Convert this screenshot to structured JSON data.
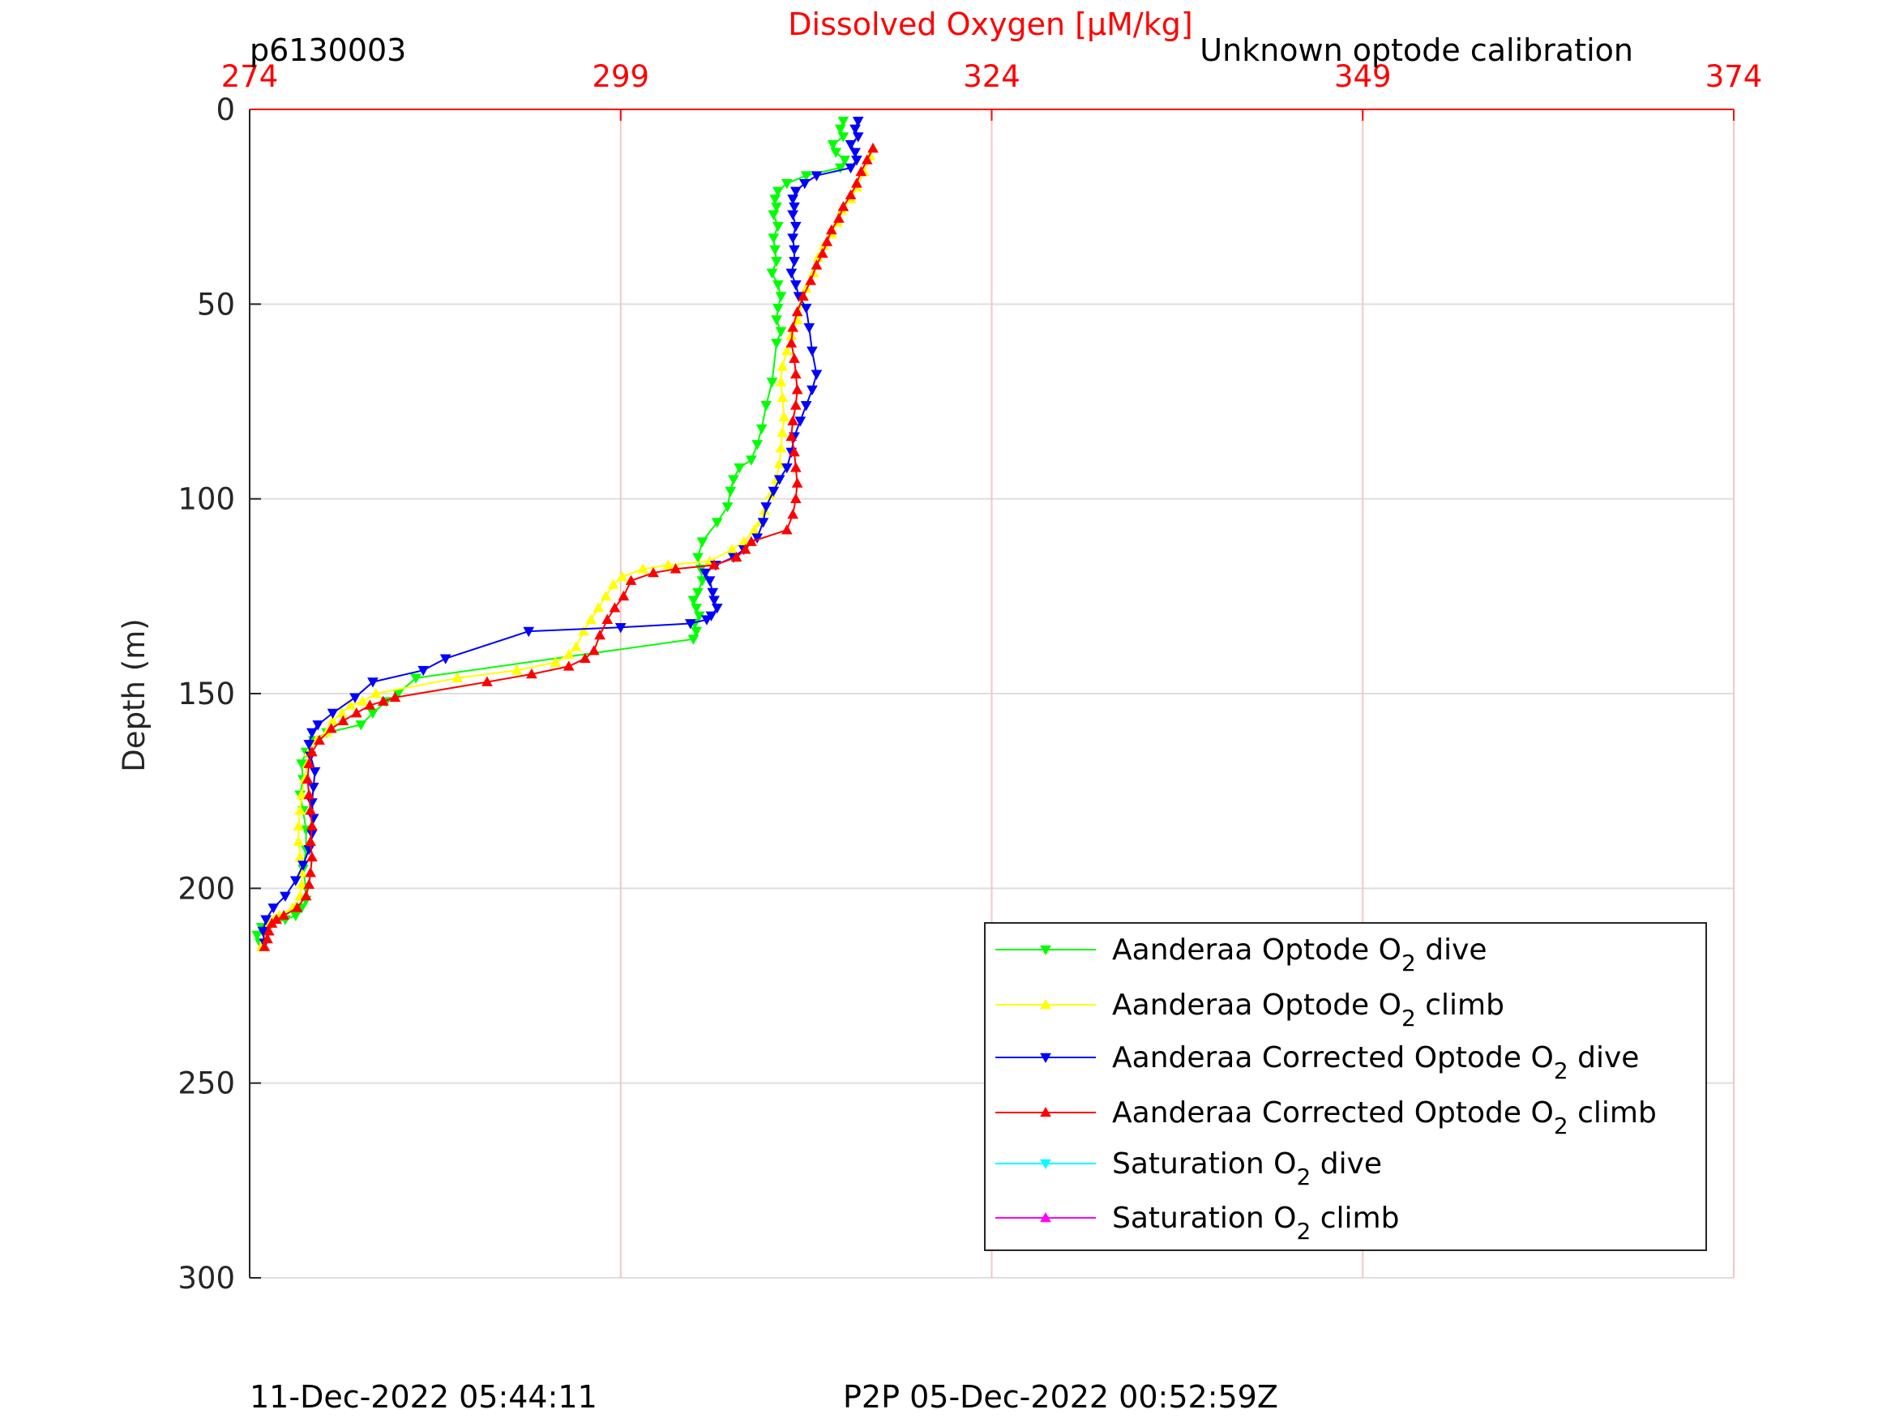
{
  "chart_data": {
    "type": "line",
    "title": "Dissolved Oxygen [μM/kg]",
    "title_color": "#ff0000",
    "corner_left_label": "p6130003",
    "corner_right_label": "Unknown optode calibration",
    "footer_left": "11-Dec-2022 05:44:11",
    "footer_right": "P2P 05-Dec-2022 00:52:59Z",
    "xaxis": {
      "location": "top",
      "lim": [
        274,
        374
      ],
      "ticks": [
        274,
        299,
        324,
        349,
        374
      ],
      "tick_labels": [
        "274",
        "299",
        "324",
        "349",
        "374"
      ],
      "color": "#ff0000",
      "grid": true,
      "grid_color": "#f4c7c7"
    },
    "yaxis": {
      "label": "Depth (m)",
      "lim": [
        0,
        300
      ],
      "reversed": true,
      "ticks": [
        0,
        50,
        100,
        150,
        200,
        250,
        300
      ],
      "tick_labels": [
        "0",
        "50",
        "100",
        "150",
        "200",
        "250",
        "300"
      ],
      "grid": true,
      "grid_color": "#dedede"
    },
    "legend": {
      "placement": "bottom-right inside",
      "entries": [
        {
          "label_pre": "Aanderaa Optode O",
          "label_sub": "2",
          "label_post": " dive",
          "color": "#00ff00",
          "marker": "down"
        },
        {
          "label_pre": "Aanderaa Optode O",
          "label_sub": "2",
          "label_post": " climb",
          "color": "#ffff00",
          "marker": "up"
        },
        {
          "label_pre": "Aanderaa Corrected Optode O",
          "label_sub": "2",
          "label_post": " dive",
          "color": "#0000ff",
          "marker": "down"
        },
        {
          "label_pre": "Aanderaa Corrected Optode O",
          "label_sub": "2",
          "label_post": " climb",
          "color": "#ff0000",
          "marker": "up"
        },
        {
          "label_pre": "Saturation O",
          "label_sub": "2",
          "label_post": " dive",
          "color": "#00ffff",
          "marker": "down"
        },
        {
          "label_pre": "Saturation O",
          "label_sub": "2",
          "label_post": " climb",
          "color": "#ff00ff",
          "marker": "up"
        }
      ]
    },
    "series": [
      {
        "name": "Aanderaa Optode O2 dive",
        "color": "#00ff00",
        "marker": "down",
        "x": [
          314.0,
          313.8,
          314.0,
          313.3,
          313.5,
          314.1,
          313.8,
          311.5,
          310.2,
          309.6,
          309.4,
          309.5,
          309.3,
          309.6,
          309.3,
          309.4,
          309.5,
          309.2,
          309.6,
          309.8,
          309.6,
          309.5,
          309.8,
          309.5,
          309.2,
          308.8,
          308.5,
          308.2,
          307.8,
          307.0,
          306.6,
          306.4,
          306.2,
          305.5,
          304.5,
          304.2,
          304.4,
          304.5,
          304.2,
          303.9,
          304.1,
          304.3,
          304.0,
          304.1,
          303.9,
          285.2,
          284.0,
          283.2,
          282.3,
          281.5,
          279.2,
          278.3,
          277.8,
          277.5,
          277.6,
          277.4,
          277.6,
          277.8,
          277.8,
          277.6,
          277.8,
          277.8,
          277.5,
          277.1,
          276.4,
          275.5,
          274.8,
          274.5,
          274.7
        ],
        "y": [
          3,
          5,
          7,
          9,
          11,
          13,
          15,
          17,
          19,
          21,
          23,
          25,
          27,
          30,
          33,
          36,
          39,
          42,
          45,
          48,
          51,
          54,
          57,
          60,
          70,
          76,
          82,
          86,
          90,
          92,
          95,
          98,
          102,
          106,
          111,
          115,
          118,
          121,
          124,
          126,
          128,
          130,
          132,
          134,
          136,
          146,
          150,
          152,
          155,
          158,
          160,
          162,
          165,
          168,
          172,
          176,
          180,
          185,
          190,
          195,
          200,
          203,
          205,
          207,
          208,
          209,
          210,
          212,
          214
        ]
      },
      {
        "name": "Aanderaa Optode O2 climb",
        "color": "#ffff00",
        "marker": "up",
        "x": [
          274.8,
          275.0,
          275.1,
          275.3,
          275.6,
          276.0,
          276.9,
          277.4,
          277.5,
          277.5,
          277.4,
          277.3,
          277.3,
          277.4,
          277.5,
          277.7,
          277.9,
          278.0,
          278.5,
          279.2,
          279.6,
          280.2,
          280.8,
          281.6,
          282.5,
          288.0,
          292.0,
          294.6,
          295.5,
          296.0,
          296.5,
          297.0,
          297.5,
          298.0,
          298.5,
          299.1,
          300.5,
          302.2,
          305.0,
          306.5,
          307.3,
          308.0,
          308.4,
          308.7,
          309.1,
          309.5,
          309.7,
          309.8,
          309.9,
          310.0,
          309.9,
          309.8,
          309.9,
          310.2,
          310.5,
          310.9,
          311.2,
          311.5,
          312.0,
          312.3,
          312.7,
          313.2,
          313.6,
          313.9,
          314.5,
          314.9,
          315.4,
          315.8
        ],
        "y": [
          215,
          213,
          211,
          209,
          208,
          207,
          205,
          202,
          199,
          196,
          192,
          188,
          184,
          180,
          176,
          172,
          168,
          165,
          162,
          160,
          157,
          155,
          153,
          152,
          150,
          146,
          144,
          142,
          140,
          138,
          134,
          131,
          128,
          125,
          122,
          120,
          118,
          117,
          116,
          113,
          111,
          108,
          106,
          103,
          99,
          95,
          91,
          87,
          83,
          79,
          74,
          70,
          66,
          62,
          58,
          54,
          50,
          46,
          42,
          38,
          35,
          32,
          29,
          26,
          23,
          20,
          16,
          12
        ]
      },
      {
        "name": "Aanderaa Corrected Optode O2 dive",
        "color": "#0000ff",
        "marker": "down",
        "x": [
          315.0,
          314.8,
          315.0,
          314.5,
          314.8,
          314.9,
          314.5,
          312.2,
          311.4,
          310.8,
          310.6,
          310.7,
          310.6,
          310.8,
          310.6,
          310.7,
          310.7,
          310.5,
          310.8,
          311.0,
          311.5,
          311.7,
          311.9,
          312.2,
          311.9,
          311.5,
          311.1,
          310.7,
          310.5,
          310.2,
          309.7,
          309.3,
          308.8,
          308.6,
          308.2,
          307.3,
          306.6,
          305.4,
          304.7,
          305.0,
          305.2,
          305.3,
          305.5,
          305.1,
          304.8,
          303.7,
          299.0,
          292.8,
          287.2,
          285.7,
          282.3,
          281.1,
          279.6,
          278.6,
          278.2,
          278.0,
          278.1,
          278.4,
          278.3,
          278.2,
          278.3,
          278.2,
          278.0,
          277.6,
          277.1,
          276.4,
          275.6,
          275.1,
          274.9,
          275.0
        ],
        "y": [
          3,
          5,
          7,
          9,
          11,
          13,
          15,
          17,
          19,
          21,
          23,
          25,
          27,
          30,
          33,
          36,
          39,
          42,
          45,
          48,
          51,
          56,
          62,
          68,
          72,
          76,
          80,
          84,
          88,
          92,
          95,
          98,
          102,
          106,
          110,
          113,
          115,
          117,
          119,
          121,
          124,
          126,
          128,
          130,
          131,
          132,
          133,
          134,
          141,
          144,
          147,
          151,
          155,
          158,
          160,
          163,
          166,
          170,
          174,
          178,
          182,
          186,
          190,
          194,
          198,
          202,
          205,
          208,
          211,
          214
        ]
      },
      {
        "name": "Aanderaa Corrected Optode O2 climb",
        "color": "#ff0000",
        "marker": "up",
        "x": [
          275.0,
          275.2,
          275.3,
          275.5,
          275.8,
          276.3,
          277.2,
          277.8,
          278.0,
          278.1,
          278.2,
          278.1,
          278.2,
          278.1,
          278.0,
          277.9,
          278.0,
          278.2,
          278.7,
          279.5,
          280.3,
          281.2,
          282.1,
          283.0,
          283.8,
          290.0,
          293.0,
          295.5,
          296.6,
          297.2,
          297.6,
          298.1,
          298.6,
          299.2,
          299.7,
          301.2,
          302.7,
          305.3,
          306.8,
          307.4,
          307.8,
          310.2,
          310.6,
          310.8,
          310.9,
          310.8,
          310.7,
          310.5,
          310.6,
          310.8,
          310.9,
          310.8,
          310.7,
          310.5,
          310.6,
          310.9,
          311.3,
          311.8,
          312.2,
          312.6,
          312.9,
          313.2,
          313.7,
          314.0,
          314.5,
          314.9,
          315.2,
          315.6,
          316.0
        ],
        "y": [
          215,
          213,
          211,
          209,
          208,
          207,
          205,
          202,
          199,
          196,
          192,
          188,
          184,
          180,
          176,
          172,
          168,
          165,
          162,
          159,
          157,
          155,
          153,
          152,
          151,
          147,
          145,
          143,
          141,
          139,
          135,
          131,
          128,
          125,
          121,
          119,
          118,
          117,
          115,
          113,
          111,
          108,
          104,
          100,
          96,
          92,
          88,
          84,
          80,
          76,
          72,
          68,
          64,
          60,
          56,
          52,
          48,
          44,
          40,
          37,
          34,
          31,
          28,
          25,
          22,
          19,
          16,
          13,
          10
        ]
      }
    ]
  }
}
